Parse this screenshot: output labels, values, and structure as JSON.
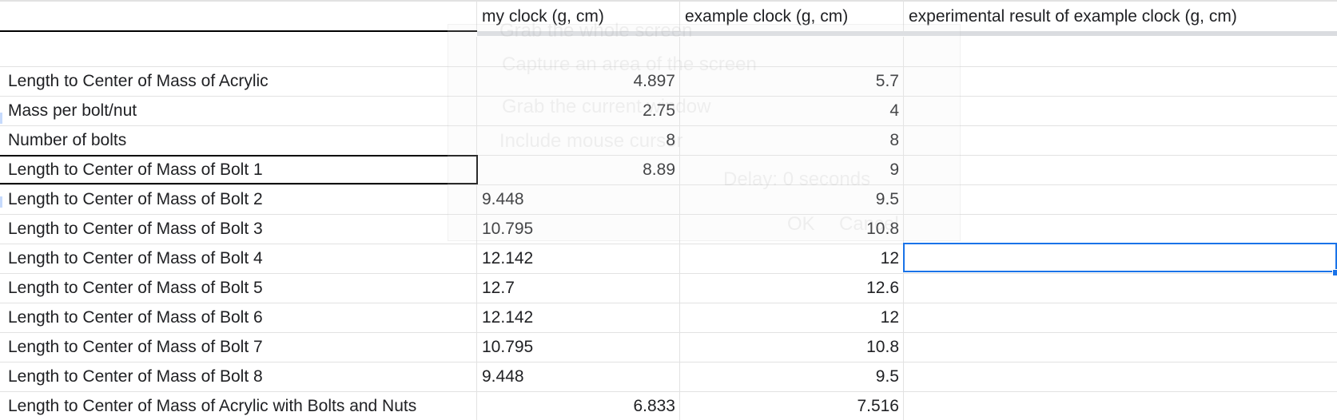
{
  "headers": [
    "",
    "my clock (g, cm)",
    "example clock (g, cm)",
    "experimental result of example clock (g, cm)"
  ],
  "rows": [
    {
      "label": "",
      "my": "",
      "example": "",
      "exp": ""
    },
    {
      "label": "Length to Center of Mass of Acrylic",
      "my": "4.897",
      "example": "5.7",
      "exp": ""
    },
    {
      "label": "Mass per bolt/nut",
      "my": "2.75",
      "example": "4",
      "exp": ""
    },
    {
      "label": "Number of bolts",
      "my": "8",
      "example": "8",
      "exp": ""
    },
    {
      "label": "Length to Center of Mass of Bolt 1",
      "my": "8.89",
      "example": "9",
      "exp": ""
    },
    {
      "label": "Length to Center of Mass of Bolt 2",
      "my": "9.448",
      "example": "9.5",
      "exp": ""
    },
    {
      "label": "Length to Center of Mass of Bolt 3",
      "my": "10.795",
      "example": "10.8",
      "exp": ""
    },
    {
      "label": "Length to Center of Mass of Bolt 4",
      "my": "12.142",
      "example": "12",
      "exp": ""
    },
    {
      "label": "Length to Center of Mass of Bolt 5",
      "my": "12.7",
      "example": "12.6",
      "exp": ""
    },
    {
      "label": "Length to Center of Mass of Bolt 6",
      "my": "12.142",
      "example": "12",
      "exp": ""
    },
    {
      "label": "Length to Center of Mass of Bolt 7",
      "my": "10.795",
      "example": "10.8",
      "exp": ""
    },
    {
      "label": "Length to Center of Mass of Bolt 8",
      "my": "9.448",
      "example": "9.5",
      "exp": ""
    },
    {
      "label": "Length to Center of Mass of Acrylic with Bolts and Nuts",
      "my": "6.833",
      "example": "7.516",
      "exp": ""
    }
  ],
  "my_alignment": [
    "right",
    "right",
    "right",
    "right",
    "right",
    "left",
    "left",
    "left",
    "left",
    "left",
    "left",
    "left",
    "right"
  ],
  "ghost_dialog": {
    "line1": "Grab the whole screen",
    "line2": "Capture an area of the screen",
    "line3": "Grab the current window",
    "line4": "Include mouse cursor",
    "delay": "Delay: 0 seconds",
    "ok": "OK",
    "cancel": "Cancel"
  },
  "colors": {
    "grid": "#e2e2e2",
    "selection": "#1a73e8",
    "frozen_bar": "#dadce0"
  }
}
